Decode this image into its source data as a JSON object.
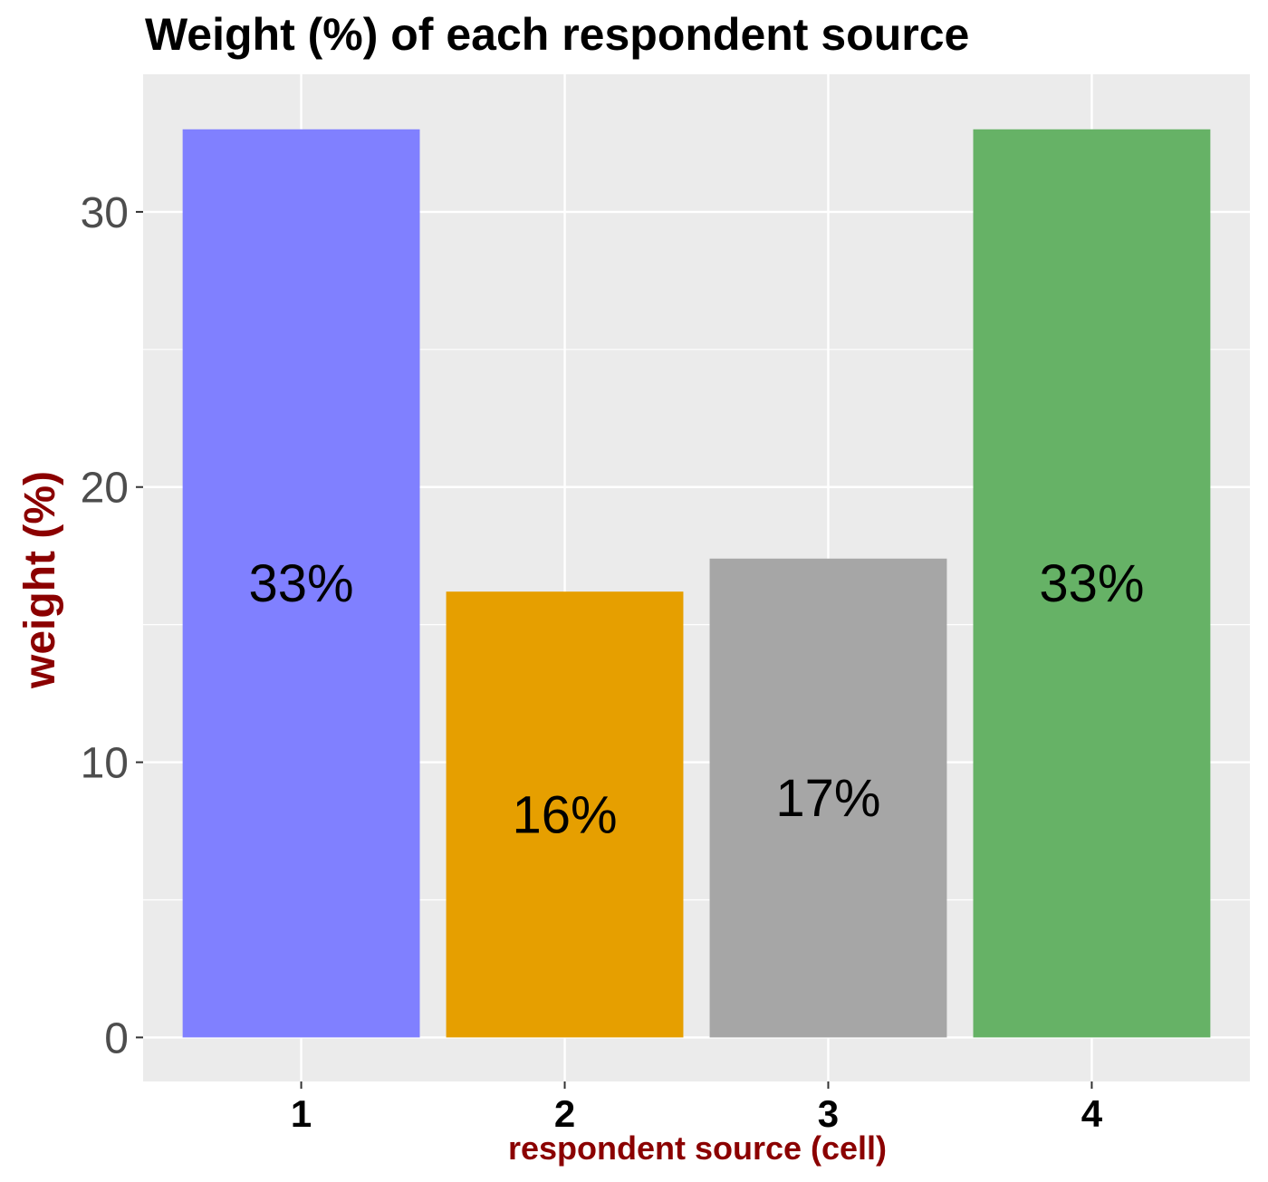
{
  "chart_data": {
    "type": "bar",
    "title": "Weight (%) of each respondent source",
    "xlabel": "respondent source (cell)",
    "ylabel": "weight (%)",
    "categories": [
      "1",
      "2",
      "3",
      "4"
    ],
    "values": [
      33.0,
      16.2,
      17.4,
      33.0
    ],
    "data_labels": [
      "33%",
      "16%",
      "17%",
      "33%"
    ],
    "colors": [
      "#8080FF",
      "#E69F00",
      "#A6A6A6",
      "#66B266"
    ],
    "ylim": [
      -1.6,
      35.0
    ],
    "yticks": [
      0,
      10,
      20,
      30
    ],
    "ytick_labels": [
      "0",
      "10",
      "20",
      "30"
    ],
    "grid": true,
    "legend": "none",
    "panel_background": "#EBEBEB",
    "title_color": "#000000",
    "axis_title_color": "#8B0000"
  }
}
